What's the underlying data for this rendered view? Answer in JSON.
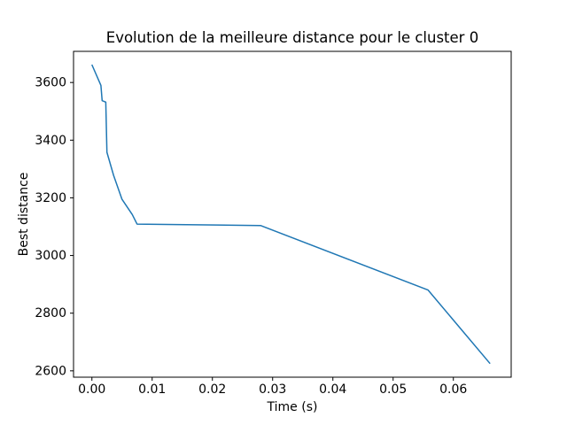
{
  "chart_data": {
    "type": "line",
    "title": "Evolution de la meilleure distance pour le cluster 0",
    "xlabel": "Time (s)",
    "ylabel": "Best distance",
    "line_color": "#1f77b4",
    "background_color": "#ffffff",
    "spine_color": "#000000",
    "grid": false,
    "legend_position": "none",
    "xlim": [
      -0.00305,
      0.0696
    ],
    "ylim": [
      2578,
      3708
    ],
    "xticks": [
      0.0,
      0.01,
      0.02,
      0.03,
      0.04,
      0.05,
      0.06
    ],
    "xtick_labels": [
      "0.00",
      "0.01",
      "0.02",
      "0.03",
      "0.04",
      "0.05",
      "0.06"
    ],
    "yticks": [
      2600,
      2800,
      3000,
      3200,
      3400,
      3600
    ],
    "ytick_labels": [
      "2600",
      "2800",
      "3000",
      "3200",
      "3400",
      "3600"
    ],
    "series": [
      {
        "name": "best-distance-cluster-0",
        "points": [
          [
            0.0,
            3662
          ],
          [
            0.0015,
            3590
          ],
          [
            0.0017,
            3537
          ],
          [
            0.0023,
            3532
          ],
          [
            0.0025,
            3358
          ],
          [
            0.0036,
            3278
          ],
          [
            0.005,
            3195
          ],
          [
            0.0067,
            3142
          ],
          [
            0.0075,
            3109
          ],
          [
            0.028,
            3104
          ],
          [
            0.0558,
            2880
          ],
          [
            0.0661,
            2625
          ]
        ]
      }
    ]
  }
}
